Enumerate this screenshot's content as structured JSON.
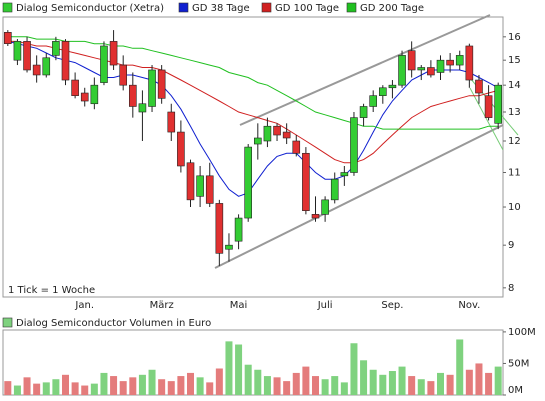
{
  "chart_data": [
    {
      "type": "candlestick",
      "legend": [
        "Dialog Semiconductor (Xetra)",
        "GD 38 Tage",
        "GD 100 Tage",
        "GD 200 Tage"
      ],
      "annotation": "1 Tick = 1 Woche",
      "up_color": "#33cc33",
      "down_color": "#e03030",
      "categories": [
        null,
        null,
        null,
        null,
        null,
        null,
        null,
        null,
        "Jan.",
        null,
        null,
        null,
        null,
        null,
        null,
        null,
        "März",
        null,
        null,
        null,
        null,
        null,
        null,
        null,
        "Mai",
        null,
        null,
        null,
        null,
        null,
        null,
        null,
        null,
        "Juli",
        null,
        null,
        null,
        null,
        null,
        null,
        "Sep.",
        null,
        null,
        null,
        null,
        null,
        null,
        null,
        "Nov.",
        null,
        null,
        null
      ],
      "open": [
        16.2,
        15.0,
        15.8,
        14.8,
        14.4,
        15.2,
        15.8,
        14.2,
        13.7,
        13.3,
        14.1,
        15.8,
        14.8,
        14.0,
        13.0,
        13.2,
        14.6,
        13.0,
        12.3,
        11.3,
        10.3,
        10.9,
        10.1,
        8.9,
        9.1,
        9.7,
        11.9,
        12.0,
        12.5,
        12.3,
        12.0,
        11.6,
        9.8,
        9.8,
        10.2,
        10.9,
        11.0,
        12.8,
        13.2,
        13.6,
        13.9,
        14.0,
        15.4,
        14.6,
        14.7,
        14.5,
        15.0,
        14.8,
        15.6,
        14.2,
        13.6,
        12.6
      ],
      "high": [
        16.3,
        15.9,
        16.0,
        15.2,
        15.3,
        16.0,
        15.9,
        14.5,
        13.9,
        14.3,
        15.8,
        16.3,
        15.2,
        14.5,
        13.8,
        14.8,
        14.8,
        13.3,
        12.7,
        11.4,
        11.2,
        11.3,
        10.2,
        9.3,
        9.8,
        11.9,
        12.6,
        12.8,
        12.6,
        12.6,
        12.2,
        11.8,
        10.3,
        10.3,
        11.0,
        11.2,
        13.0,
        13.3,
        13.8,
        14.0,
        14.2,
        15.4,
        15.8,
        14.8,
        15.0,
        15.2,
        15.3,
        15.4,
        15.7,
        14.4,
        14.0,
        14.1
      ],
      "low": [
        15.6,
        14.8,
        14.5,
        14.1,
        14.3,
        15.0,
        14.0,
        13.5,
        13.2,
        13.1,
        14.0,
        14.6,
        13.8,
        12.8,
        12.0,
        13.0,
        13.3,
        12.0,
        11.0,
        10.0,
        10.0,
        10.0,
        8.5,
        8.6,
        8.9,
        9.6,
        11.4,
        11.8,
        12.0,
        11.9,
        11.5,
        9.8,
        9.6,
        9.6,
        10.1,
        10.6,
        10.9,
        12.5,
        13.0,
        13.3,
        13.5,
        13.9,
        14.3,
        14.2,
        14.3,
        14.2,
        14.5,
        14.6,
        13.9,
        13.3,
        12.7,
        12.4
      ],
      "close": [
        15.7,
        15.8,
        14.6,
        14.4,
        15.1,
        15.8,
        14.2,
        13.6,
        13.4,
        14.0,
        15.6,
        14.8,
        14.0,
        13.2,
        13.3,
        14.6,
        13.5,
        12.3,
        11.2,
        10.2,
        10.9,
        10.1,
        8.8,
        9.0,
        9.7,
        11.8,
        12.1,
        12.5,
        12.2,
        12.1,
        11.6,
        9.9,
        9.7,
        10.2,
        10.8,
        11.0,
        12.8,
        13.2,
        13.6,
        13.9,
        14.0,
        15.2,
        14.6,
        14.7,
        14.4,
        15.0,
        14.8,
        15.2,
        14.2,
        13.7,
        12.8,
        14.0
      ],
      "series": [
        {
          "name": "GD 38 Tage",
          "color": "#1020d0",
          "values": [
            15.8,
            15.7,
            15.6,
            15.5,
            15.3,
            15.1,
            15.0,
            14.9,
            14.7,
            14.5,
            14.3,
            14.3,
            14.4,
            14.4,
            14.3,
            14.2,
            14.0,
            13.6,
            13.1,
            12.5,
            11.9,
            11.4,
            10.9,
            10.5,
            10.3,
            10.4,
            10.8,
            11.2,
            11.5,
            11.6,
            11.6,
            11.3,
            11.0,
            10.8,
            10.8,
            10.9,
            11.2,
            11.7,
            12.3,
            12.9,
            13.4,
            13.8,
            14.2,
            14.4,
            14.6,
            14.6,
            14.6,
            14.6,
            14.5,
            14.3,
            14.1,
            13.9
          ]
        },
        {
          "name": "GD 100 Tage",
          "color": "#d02020",
          "values": [
            15.8,
            15.8,
            15.7,
            15.6,
            15.6,
            15.5,
            15.4,
            15.3,
            15.2,
            15.1,
            15.0,
            14.9,
            14.8,
            14.8,
            14.7,
            14.7,
            14.6,
            14.4,
            14.2,
            14.0,
            13.8,
            13.6,
            13.4,
            13.2,
            13.0,
            12.9,
            12.8,
            12.7,
            12.6,
            12.4,
            12.2,
            12.0,
            11.8,
            11.6,
            11.4,
            11.3,
            11.3,
            11.4,
            11.6,
            11.9,
            12.2,
            12.5,
            12.8,
            13.0,
            13.2,
            13.3,
            13.4,
            13.5,
            13.6,
            13.6,
            13.7,
            13.8
          ]
        },
        {
          "name": "GD 200 Tage",
          "color": "#20c020",
          "values": [
            16.0,
            16.0,
            16.0,
            15.9,
            15.9,
            15.9,
            15.8,
            15.8,
            15.8,
            15.7,
            15.7,
            15.6,
            15.6,
            15.5,
            15.5,
            15.4,
            15.3,
            15.2,
            15.1,
            15.0,
            14.9,
            14.8,
            14.7,
            14.5,
            14.4,
            14.3,
            14.1,
            14.0,
            13.8,
            13.6,
            13.4,
            13.2,
            13.0,
            12.9,
            12.8,
            12.7,
            12.6,
            12.5,
            12.5,
            12.4,
            12.4,
            12.4,
            12.4,
            12.4,
            12.4,
            12.4,
            12.4,
            12.4,
            12.4,
            12.4,
            12.5,
            12.5
          ]
        }
      ],
      "log_scale": true,
      "ylim": [
        7.8,
        16.9
      ],
      "yticks": [
        8,
        9,
        10,
        11,
        12,
        13,
        14,
        15,
        16
      ]
    },
    {
      "type": "bar",
      "title": "Dialog Semiconductor Volumen in Euro",
      "up_color": "#7fd27f",
      "down_color": "#e47c7c",
      "values": [
        22,
        15,
        28,
        18,
        20,
        25,
        32,
        20,
        15,
        18,
        35,
        30,
        22,
        28,
        32,
        40,
        25,
        22,
        30,
        35,
        28,
        20,
        42,
        85,
        80,
        48,
        40,
        30,
        28,
        22,
        35,
        45,
        30,
        25,
        30,
        20,
        82,
        55,
        40,
        32,
        38,
        45,
        30,
        25,
        22,
        35,
        32,
        88,
        40,
        50,
        35,
        45
      ],
      "ylim": [
        0,
        103
      ],
      "yticks": [
        {
          "value": 0,
          "label": "0M"
        },
        {
          "value": 50,
          "label": "50M"
        },
        {
          "value": 100,
          "label": "100M"
        }
      ]
    }
  ]
}
